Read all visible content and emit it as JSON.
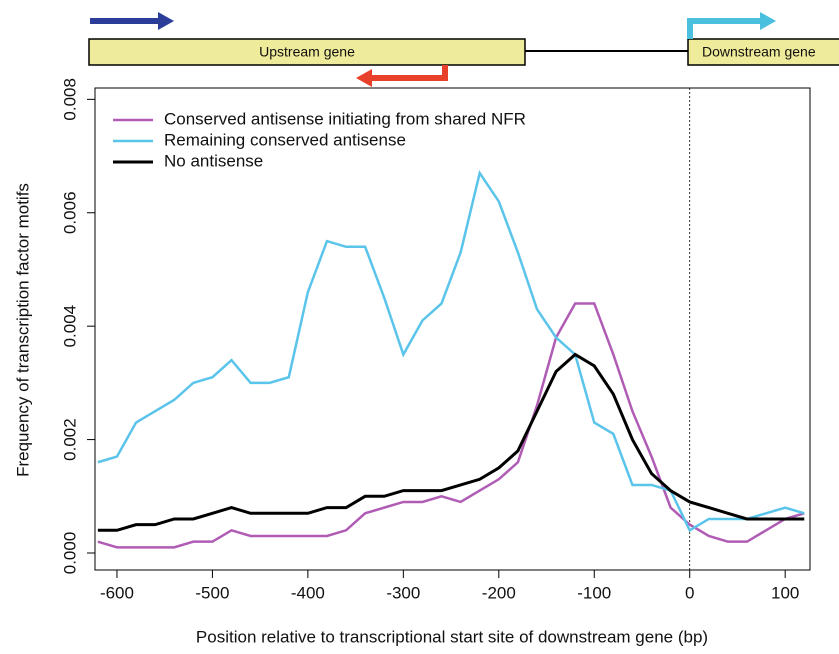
{
  "chart_data": {
    "type": "line",
    "gene_labels": [
      "Upstream gene",
      "Downstream gene"
    ],
    "xlabel": "Position relative to transcriptional start site of downstream gene (bp)",
    "ylabel": "Frequency of transcription factor motifs",
    "x": [
      -620,
      -600,
      -580,
      -560,
      -540,
      -520,
      -500,
      -480,
      -460,
      -440,
      -420,
      -400,
      -380,
      -360,
      -340,
      -320,
      -300,
      -280,
      -260,
      -240,
      -220,
      -200,
      -180,
      -160,
      -140,
      -120,
      -100,
      -80,
      -60,
      -40,
      -20,
      0,
      20,
      40,
      60,
      80,
      100,
      120
    ],
    "series": [
      {
        "name": "Conserved antisense initiating from shared NFR",
        "color": "#b05cb5",
        "values": [
          0.0002,
          0.0001,
          0.0001,
          0.0001,
          0.0001,
          0.0002,
          0.0002,
          0.0004,
          0.0003,
          0.0003,
          0.0003,
          0.0003,
          0.0003,
          0.0004,
          0.0007,
          0.0008,
          0.0009,
          0.0009,
          0.001,
          0.0009,
          0.0011,
          0.0013,
          0.0016,
          0.0026,
          0.0038,
          0.0044,
          0.0044,
          0.0035,
          0.0025,
          0.0017,
          0.0008,
          0.0005,
          0.0003,
          0.0002,
          0.0002,
          0.0004,
          0.0006,
          0.0007
        ]
      },
      {
        "name": "Remaining conserved antisense",
        "color": "#5bc4ea",
        "values": [
          0.0016,
          0.0017,
          0.0023,
          0.0025,
          0.0027,
          0.003,
          0.0031,
          0.0034,
          0.003,
          0.003,
          0.0031,
          0.0046,
          0.0055,
          0.0054,
          0.0054,
          0.0045,
          0.0035,
          0.0041,
          0.0044,
          0.0053,
          0.0067,
          0.0062,
          0.0053,
          0.0043,
          0.0038,
          0.0035,
          0.0023,
          0.0021,
          0.0012,
          0.0012,
          0.0011,
          0.0004,
          0.0006,
          0.0006,
          0.0006,
          0.0007,
          0.0008,
          0.0007
        ]
      },
      {
        "name": "No antisense",
        "color": "#000000",
        "values": [
          0.0004,
          0.0004,
          0.0005,
          0.0005,
          0.0006,
          0.0006,
          0.0007,
          0.0008,
          0.0007,
          0.0007,
          0.0007,
          0.0007,
          0.0008,
          0.0008,
          0.001,
          0.001,
          0.0011,
          0.0011,
          0.0011,
          0.0012,
          0.0013,
          0.0015,
          0.0018,
          0.0025,
          0.0032,
          0.0035,
          0.0033,
          0.0028,
          0.002,
          0.0014,
          0.0011,
          0.0009,
          0.0008,
          0.0007,
          0.0006,
          0.0006,
          0.0006,
          0.0006
        ]
      }
    ],
    "xlim": [
      -623,
      126
    ],
    "ylim": [
      -0.0003,
      0.0082
    ],
    "xticks": [
      -600,
      -500,
      -400,
      -300,
      -200,
      -100,
      0,
      100
    ],
    "yticks": [
      {
        "value": 0,
        "label": "0.000"
      },
      {
        "value": 0.002,
        "label": "0.002"
      },
      {
        "value": 0.004,
        "label": "0.004"
      },
      {
        "value": 0.006,
        "label": "0.006"
      },
      {
        "value": 0.008,
        "label": "0.008"
      }
    ],
    "vline": 0,
    "legend": "upper left"
  }
}
